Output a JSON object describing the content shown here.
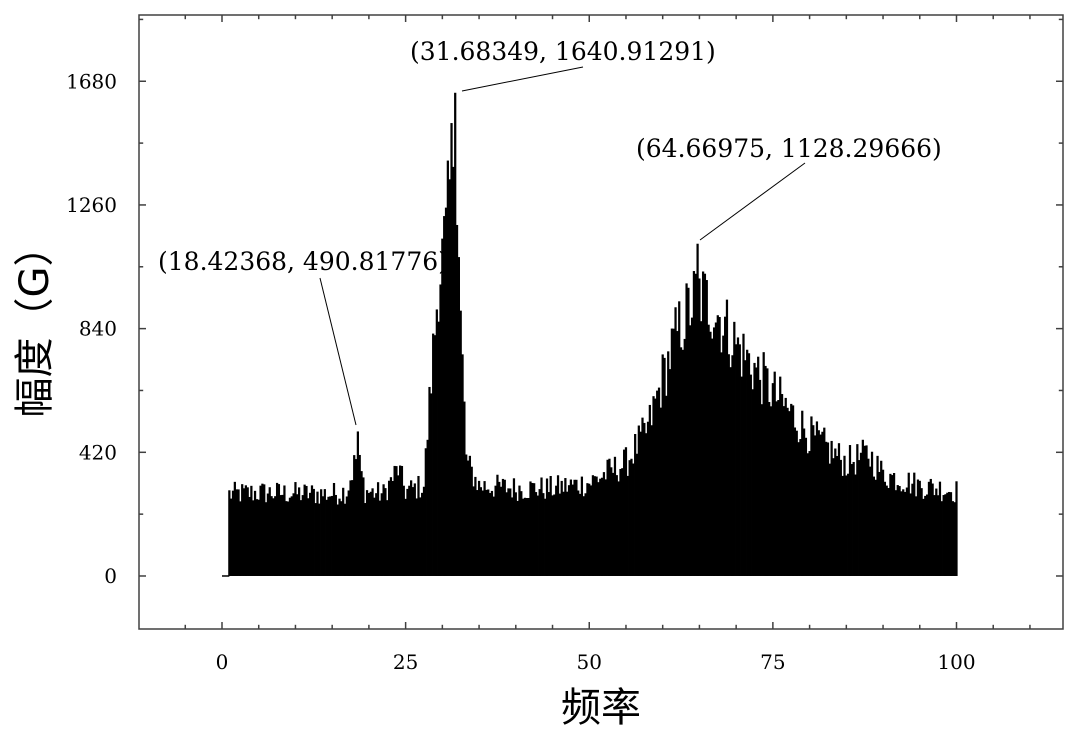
{
  "chart_data": {
    "type": "bar",
    "title": "",
    "xlabel": "频率",
    "ylabel": "幅度（G）",
    "xlim": [
      -11.3,
      114.5
    ],
    "ylim": [
      -180,
      1905
    ],
    "xticks": [
      0,
      25,
      50,
      75,
      100
    ],
    "yticks": [
      0,
      420,
      840,
      1260,
      1680
    ],
    "grid": false,
    "legend": "none",
    "bar_color": "#000000",
    "x_start": 1,
    "x_end": 100,
    "x_step": 0.25,
    "envelope": [
      [
        1,
        290
      ],
      [
        5,
        295
      ],
      [
        10,
        292
      ],
      [
        15,
        290
      ],
      [
        17,
        300
      ],
      [
        18.4,
        430
      ],
      [
        19.5,
        300
      ],
      [
        22,
        290
      ],
      [
        24,
        380
      ],
      [
        25,
        300
      ],
      [
        27.5,
        320
      ],
      [
        28.5,
        700
      ],
      [
        29.5,
        1050
      ],
      [
        30.5,
        1200
      ],
      [
        31.7,
        1600
      ],
      [
        32.5,
        900
      ],
      [
        33.3,
        400
      ],
      [
        35,
        320
      ],
      [
        40,
        310
      ],
      [
        45,
        310
      ],
      [
        50,
        330
      ],
      [
        55,
        400
      ],
      [
        58,
        520
      ],
      [
        60,
        700
      ],
      [
        62,
        860
      ],
      [
        64.7,
        1000
      ],
      [
        67,
        950
      ],
      [
        70,
        820
      ],
      [
        75,
        650
      ],
      [
        80,
        500
      ],
      [
        85,
        400
      ],
      [
        88,
        430
      ],
      [
        90,
        360
      ],
      [
        95,
        320
      ],
      [
        100,
        300
      ]
    ],
    "annotations": [
      {
        "label": "(18.42368,  490.81776)",
        "x": 18.42368,
        "y": 490.81776
      },
      {
        "label": "(31.68349,  1640.91291)",
        "x": 31.68349,
        "y": 1640.91291
      },
      {
        "label": "(64.66975,  1128.29666)",
        "x": 64.66975,
        "y": 1128.29666
      }
    ]
  }
}
